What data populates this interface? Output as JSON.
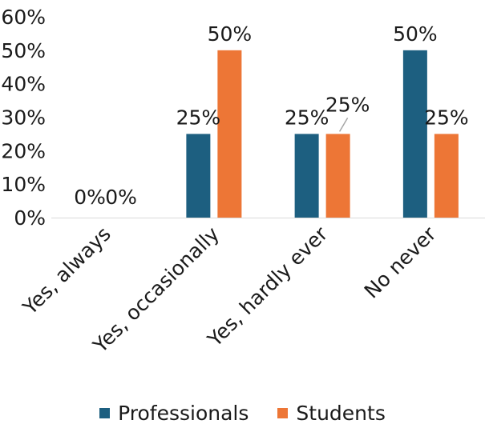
{
  "chart_data": {
    "type": "bar",
    "categories": [
      "Yes, always",
      "Yes, occasionally",
      "Yes, hardly ever",
      "No never"
    ],
    "series": [
      {
        "name": "Professionals",
        "values": [
          0,
          25,
          25,
          50
        ],
        "color": "#1d5f80",
        "labels": [
          "0%",
          "25%",
          "25%",
          "50%"
        ]
      },
      {
        "name": "Students",
        "values": [
          0,
          50,
          25,
          25
        ],
        "color": "#ed7636",
        "labels": [
          "0%",
          "50%",
          "25%",
          "25%"
        ]
      }
    ],
    "yticks": [
      "0%",
      "10%",
      "20%",
      "30%",
      "40%",
      "50%",
      "60%"
    ],
    "ylim": [
      0,
      60
    ],
    "legend_position": "bottom",
    "grid": false
  }
}
